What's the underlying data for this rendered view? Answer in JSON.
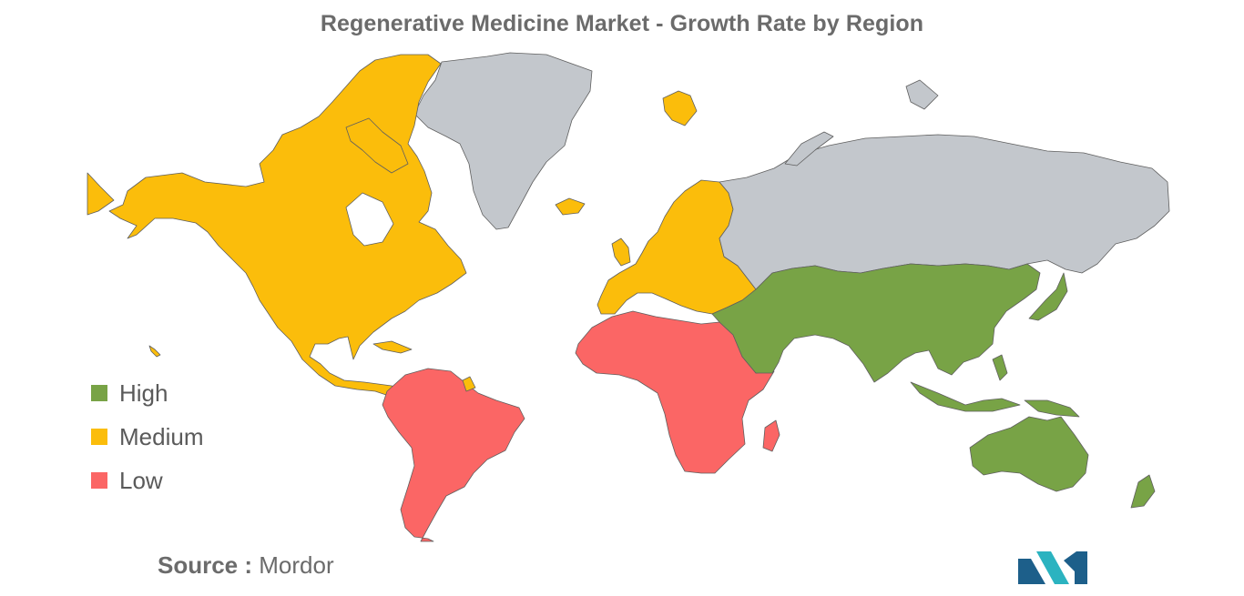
{
  "title": "Regenerative Medicine Market - Growth Rate by Region",
  "legend": [
    {
      "label": "High",
      "color": "#78a346"
    },
    {
      "label": "Medium",
      "color": "#fbbd0b"
    },
    {
      "label": "Low",
      "color": "#fb6665"
    }
  ],
  "no_data_color": "#c3c7cc",
  "source": {
    "label": "Source :",
    "value": "Mordor"
  },
  "logo_colors": [
    "#1d5f8a",
    "#2bb3c0"
  ],
  "map_regions": [
    {
      "name": "North America",
      "level": "Medium"
    },
    {
      "name": "Europe",
      "level": "Medium"
    },
    {
      "name": "Asia-Pacific",
      "level": "High"
    },
    {
      "name": "Middle East",
      "level": "High"
    },
    {
      "name": "South America",
      "level": "Low"
    },
    {
      "name": "Africa",
      "level": "Low"
    }
  ]
}
